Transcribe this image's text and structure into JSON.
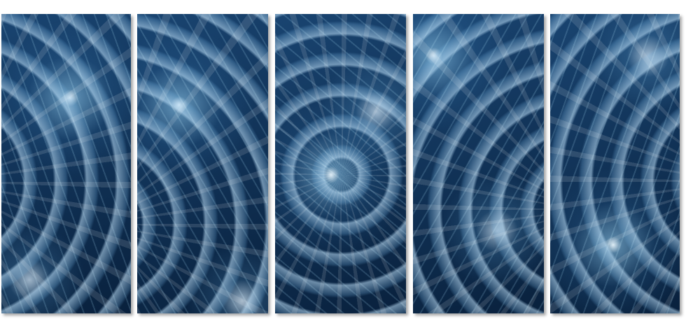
{
  "artwork": {
    "panel_count": 5,
    "colors": {
      "base": "#0d2a4a",
      "highlight": "#bfe2fa",
      "background": "#ffffff"
    }
  }
}
